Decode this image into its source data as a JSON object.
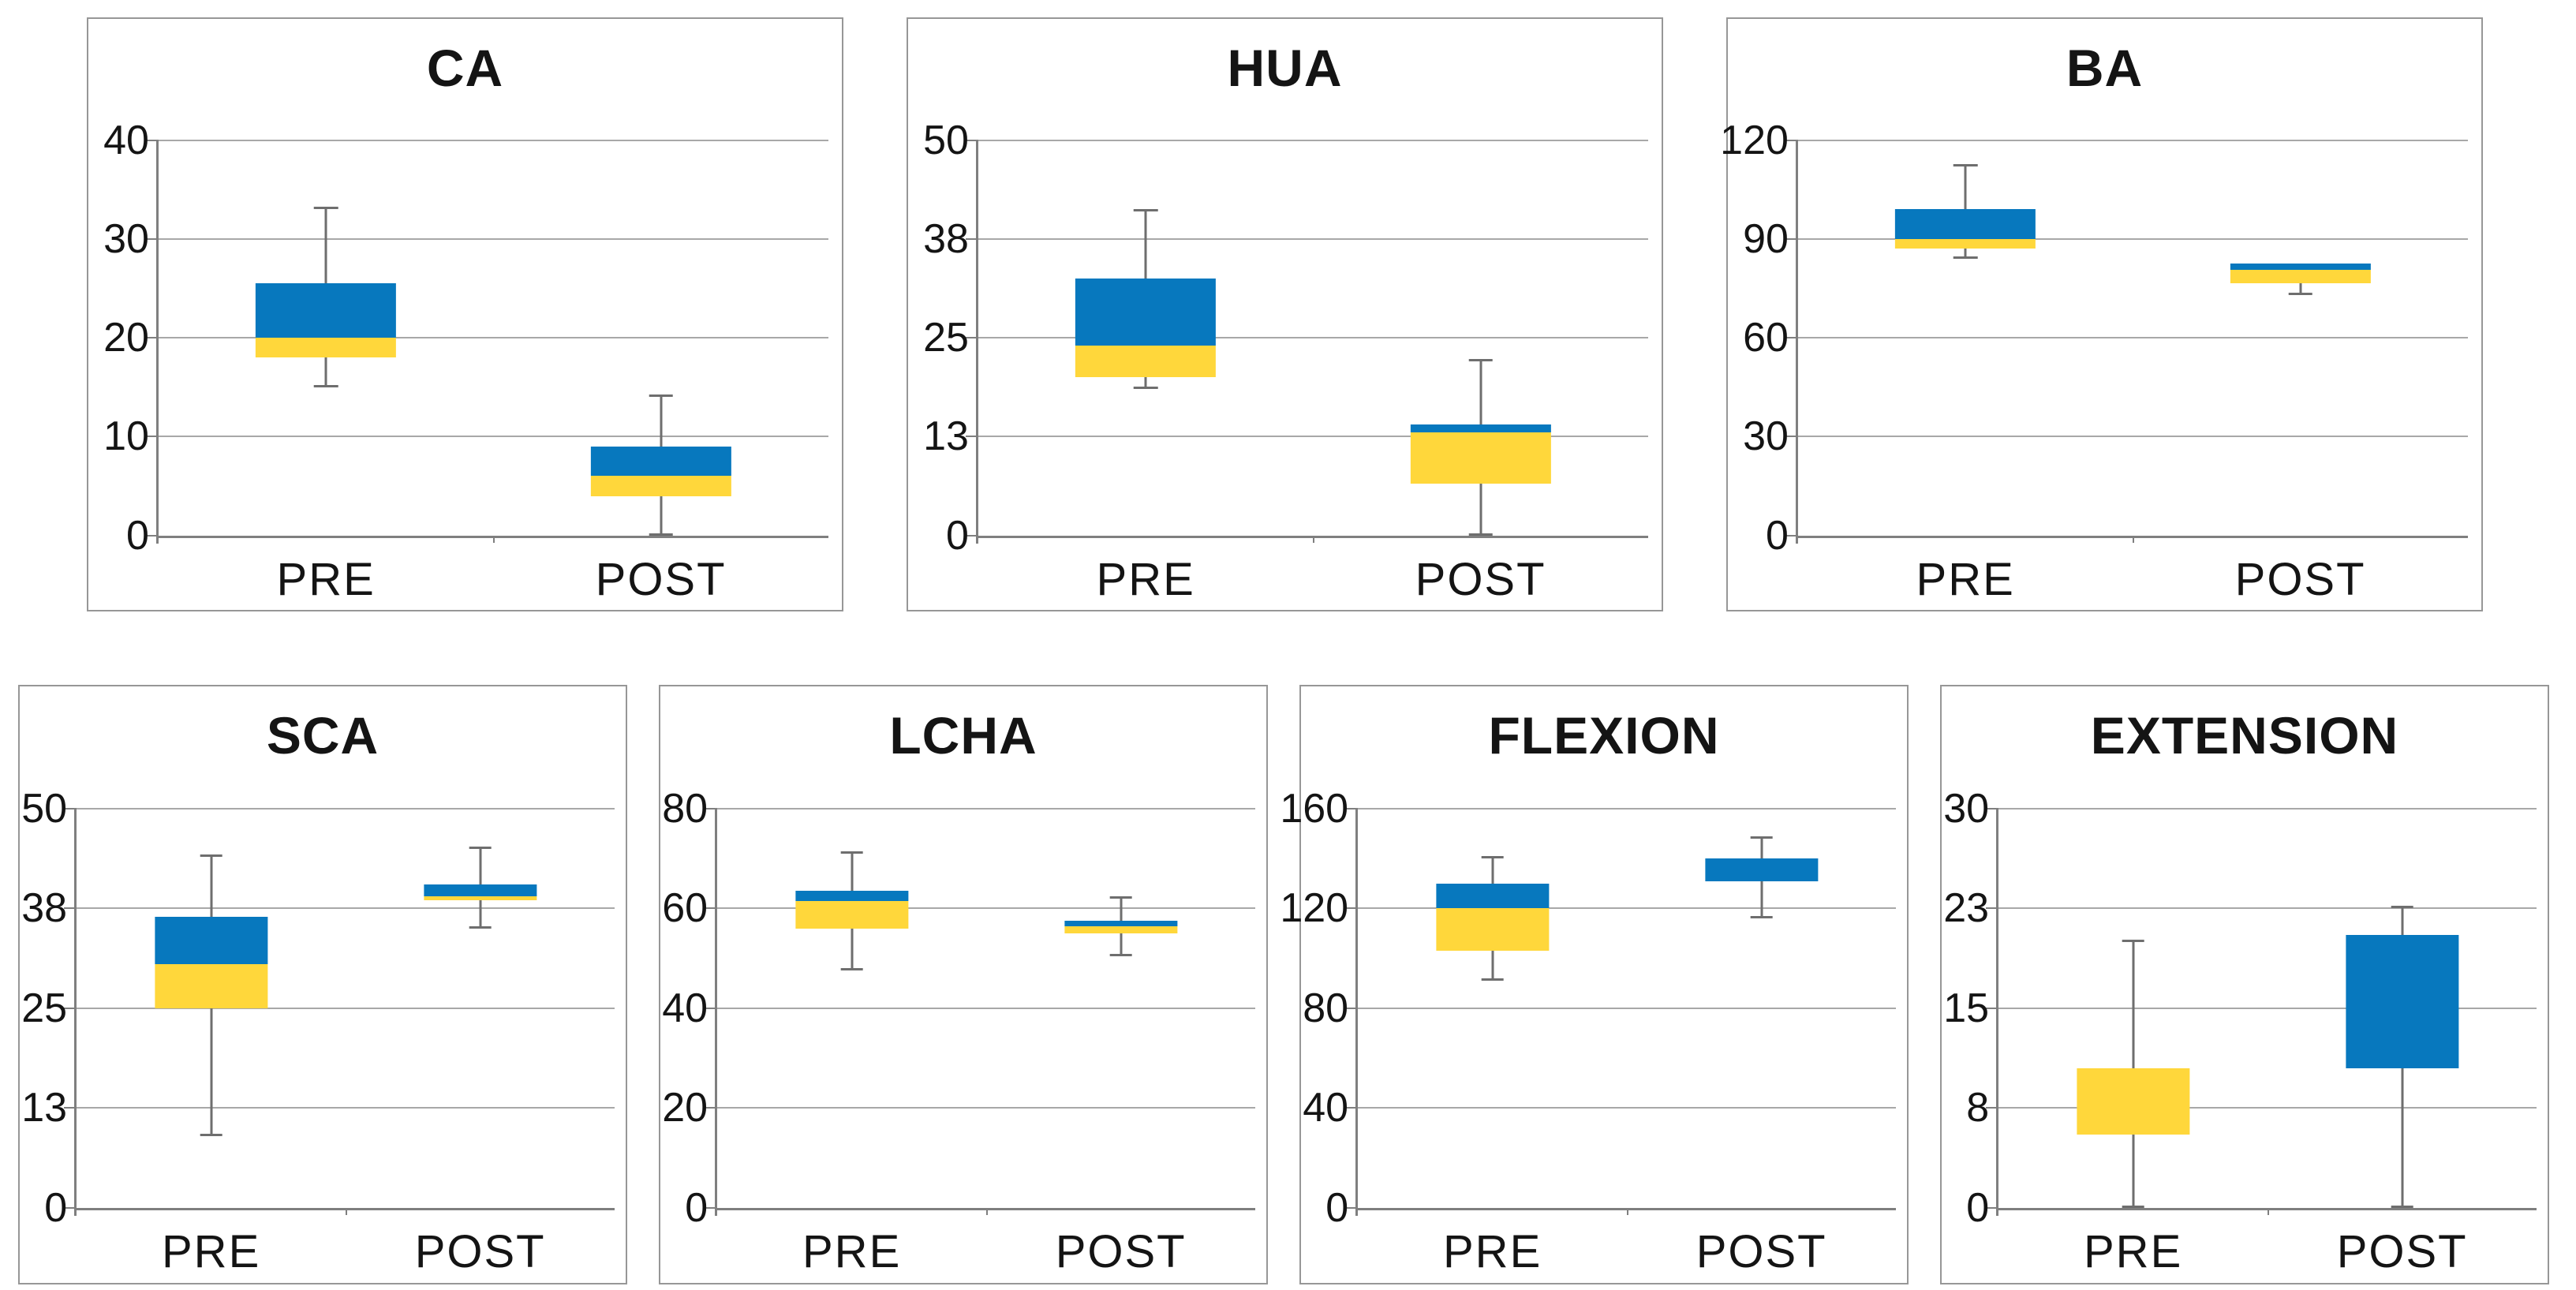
{
  "figure": {
    "description": "Seven box-and-whisker charts comparing PRE vs POST measurements",
    "background": "#ffffff"
  },
  "colors": {
    "box_upper_blue": "#0778BE",
    "box_lower_yellow": "#FFD73B",
    "gridline": "#A8A8A8",
    "axis": "#7F7F7F",
    "whisker": "#6E6E6E",
    "chart_border": "#979797",
    "text": "#141414"
  },
  "chart_data": [
    {
      "type": "box",
      "title": "CA",
      "categories": [
        "PRE",
        "POST"
      ],
      "ylim": [
        0,
        40
      ],
      "ytick_labels": [
        "0",
        "10",
        "20",
        "30",
        "40"
      ],
      "grid": true,
      "legend": false,
      "series": [
        {
          "category": "PRE",
          "whisker_low": 15,
          "q1": 18,
          "median": 20,
          "q3": 25.5,
          "whisker_high": 33
        },
        {
          "category": "POST",
          "whisker_low": 0,
          "q1": 4,
          "median": 6,
          "q3": 9,
          "whisker_high": 14
        }
      ]
    },
    {
      "type": "box",
      "title": "HUA",
      "categories": [
        "PRE",
        "POST"
      ],
      "ylim": [
        0,
        50
      ],
      "ytick_labels": [
        "0",
        "13",
        "25",
        "38",
        "50"
      ],
      "grid": true,
      "legend": false,
      "series": [
        {
          "category": "PRE",
          "whisker_low": 18.5,
          "q1": 20,
          "median": 24,
          "q3": 32.5,
          "whisker_high": 41
        },
        {
          "category": "POST",
          "whisker_low": 0,
          "q1": 6.5,
          "median": 13,
          "q3": 14,
          "whisker_high": 22
        }
      ]
    },
    {
      "type": "box",
      "title": "BA",
      "categories": [
        "PRE",
        "POST"
      ],
      "ylim": [
        0,
        120
      ],
      "ytick_labels": [
        "0",
        "30",
        "60",
        "90",
        "120"
      ],
      "grid": true,
      "legend": false,
      "series": [
        {
          "category": "PRE",
          "whisker_low": 84,
          "q1": 87,
          "median": 90,
          "q3": 99,
          "whisker_high": 112
        },
        {
          "category": "POST",
          "whisker_low": 73,
          "q1": 76.5,
          "median": 80.5,
          "q3": 82.5,
          "whisker_high": 82.5
        }
      ]
    },
    {
      "type": "box",
      "title": "SCA",
      "categories": [
        "PRE",
        "POST"
      ],
      "ylim": [
        0,
        50
      ],
      "ytick_labels": [
        "0",
        "13",
        "25",
        "38",
        "50"
      ],
      "grid": true,
      "legend": false,
      "series": [
        {
          "category": "PRE",
          "whisker_low": 9,
          "q1": 25,
          "median": 30.5,
          "q3": 36.5,
          "whisker_high": 44
        },
        {
          "category": "POST",
          "whisker_low": 35,
          "q1": 38.5,
          "median": 39,
          "q3": 40.5,
          "whisker_high": 45
        }
      ]
    },
    {
      "type": "box",
      "title": "LCHA",
      "categories": [
        "PRE",
        "POST"
      ],
      "ylim": [
        0,
        80
      ],
      "ytick_labels": [
        "0",
        "20",
        "40",
        "60",
        "80"
      ],
      "grid": true,
      "legend": false,
      "series": [
        {
          "category": "PRE",
          "whisker_low": 47.5,
          "q1": 56,
          "median": 61.5,
          "q3": 63.5,
          "whisker_high": 71
        },
        {
          "category": "POST",
          "whisker_low": 50.5,
          "q1": 55,
          "median": 56.5,
          "q3": 57.5,
          "whisker_high": 62
        }
      ]
    },
    {
      "type": "box",
      "title": "FLEXION",
      "categories": [
        "PRE",
        "POST"
      ],
      "ylim": [
        0,
        160
      ],
      "ytick_labels": [
        "0",
        "40",
        "80",
        "120",
        "160"
      ],
      "grid": true,
      "legend": false,
      "series": [
        {
          "category": "PRE",
          "whisker_low": 91,
          "q1": 103,
          "median": 120,
          "q3": 130,
          "whisker_high": 140
        },
        {
          "category": "POST",
          "whisker_low": 116,
          "q1": 131,
          "median": 131,
          "q3": 140,
          "whisker_high": 148
        }
      ]
    },
    {
      "type": "box",
      "title": "EXTENSION",
      "categories": [
        "PRE",
        "POST"
      ],
      "ylim": [
        0,
        30
      ],
      "ytick_labels": [
        "0",
        "8",
        "15",
        "23",
        "30"
      ],
      "grid": true,
      "legend": false,
      "series": [
        {
          "category": "PRE",
          "whisker_low": 0,
          "q1": 5.5,
          "median": 10.5,
          "q3": 10.5,
          "whisker_high": 20
        },
        {
          "category": "POST",
          "whisker_low": 0,
          "q1": 10.5,
          "median": 10.5,
          "q3": 20.5,
          "whisker_high": 22.5
        }
      ]
    }
  ]
}
